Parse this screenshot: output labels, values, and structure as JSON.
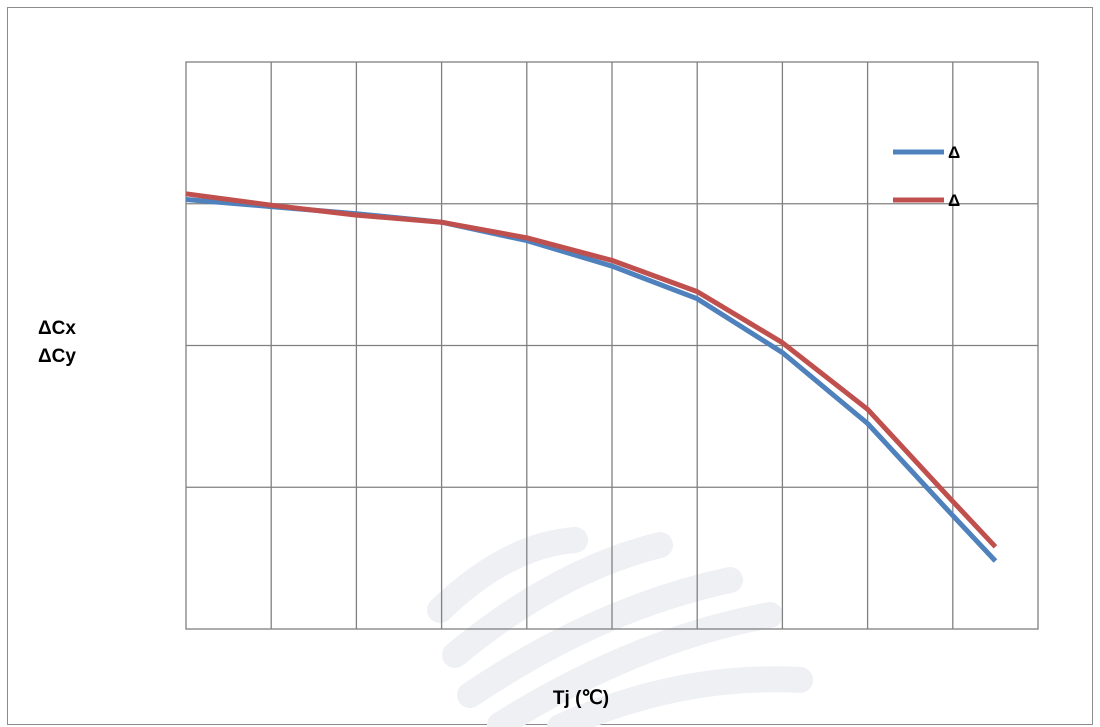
{
  "chart_data": {
    "type": "line",
    "title": "",
    "xlabel": "Tj (℃)",
    "ylabel_lines": [
      "ΔCx",
      "ΔCy"
    ],
    "x": [
      0,
      1,
      2,
      3,
      4,
      5,
      6,
      7,
      8,
      9,
      9.5
    ],
    "xlim": [
      0,
      10
    ],
    "ylim": [
      0,
      4
    ],
    "grid": true,
    "legend_position": "top-right",
    "series": [
      {
        "name": "Δ",
        "color": "#4f81bd",
        "values": [
          3.03,
          2.98,
          2.93,
          2.87,
          2.74,
          2.56,
          2.33,
          1.95,
          1.45,
          0.8,
          0.48
        ]
      },
      {
        "name": "Δ",
        "color": "#c0504d",
        "values": [
          3.07,
          2.99,
          2.92,
          2.87,
          2.76,
          2.6,
          2.38,
          2.02,
          1.55,
          0.9,
          0.58
        ]
      }
    ]
  },
  "decoration": {
    "watermark": "light grey diagonal strokes"
  }
}
